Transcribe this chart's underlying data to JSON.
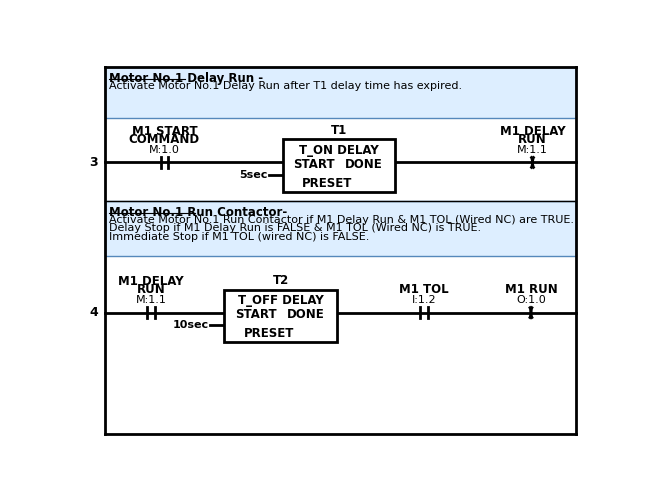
{
  "bg_color": "#ffffff",
  "rung_bg_color": "#ddeeff",
  "rung_border_color": "#5588bb",
  "rung1": {
    "label": "3",
    "header_title": "Motor No.1 Delay Run -",
    "header_text": "Activate Motor No.1 Delay Run after T1 delay time has expired.",
    "contact1_line1": "M1 START",
    "contact1_line2": "COMMAND",
    "contact1_addr": "M:1.0",
    "timer_label": "T1",
    "timer_type": "T_ON DELAY",
    "timer_start": "START",
    "timer_done": "DONE",
    "timer_preset_label": "PRESET",
    "timer_preset_val": "5sec",
    "coil_line1": "M1 DELAY",
    "coil_line2": "RUN",
    "coil_addr": "M:1.1"
  },
  "rung2": {
    "label": "4",
    "header_title": "Motor No.1 Run Contactor-",
    "header_line1": "Activate Motor No.1 Run Contactor if M1 Delay Run & M1 TOL (Wired NC) are TRUE.",
    "header_line2": "Delay Stop if M1 Delay Run is FALSE & M1 TOL (Wired NC) is TRUE.",
    "header_line3": "Immediate Stop if M1 TOL (wired NC) is FALSE.",
    "contact1_line1": "M1 DELAY",
    "contact1_line2": "RUN",
    "contact1_addr": "M:1.1",
    "timer_label": "T2",
    "timer_type": "T_OFF DELAY",
    "timer_start": "START",
    "timer_done": "DONE",
    "timer_preset_label": "PRESET",
    "timer_preset_val": "10sec",
    "contact2_line1": "M1 TOL",
    "contact2_addr": "I:1.2",
    "coil_line1": "M1 RUN",
    "coil_addr": "O:1.0"
  }
}
